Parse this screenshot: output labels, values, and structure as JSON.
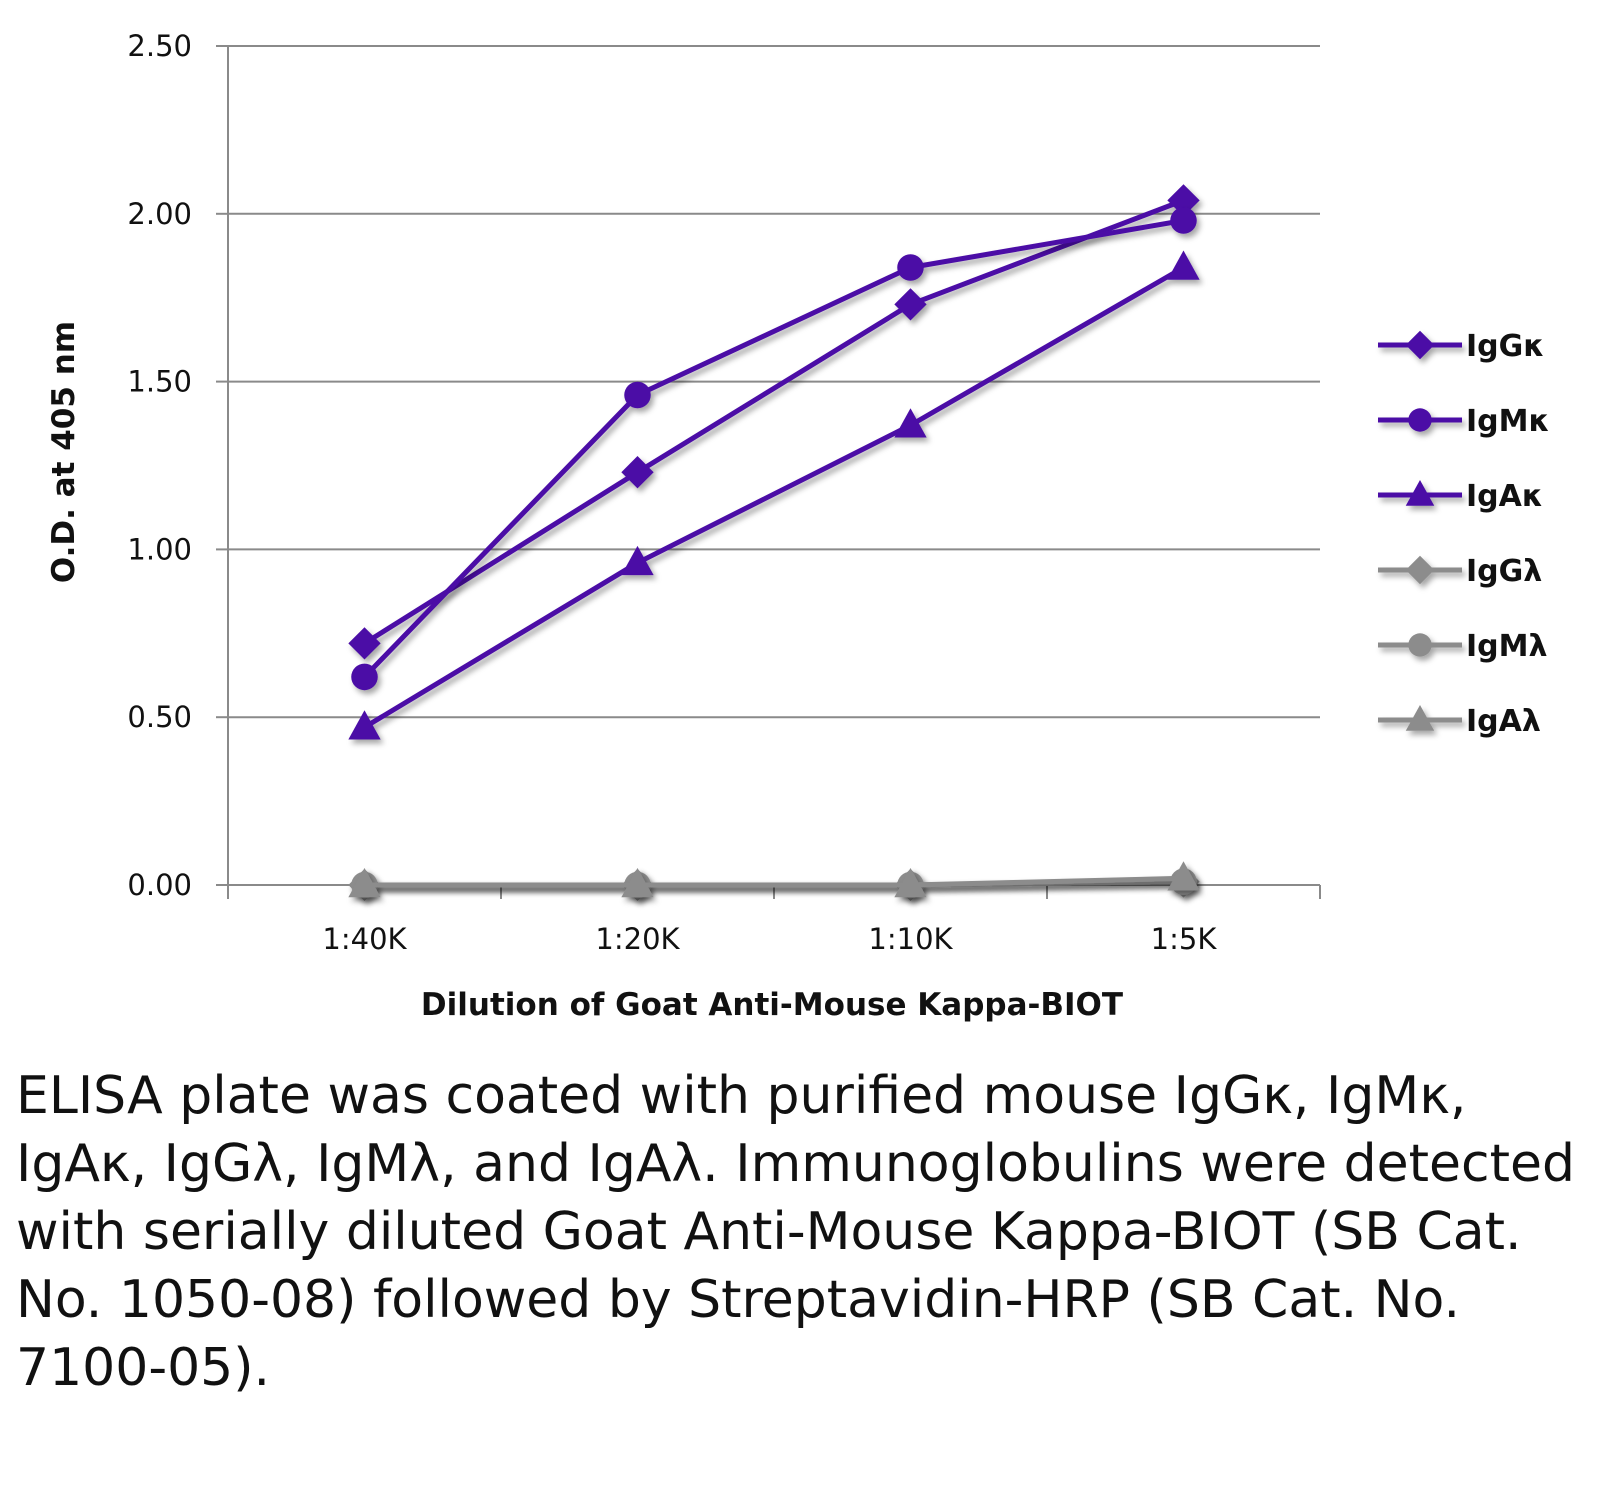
{
  "chart_data": {
    "type": "line",
    "title": "",
    "xlabel": "Dilution of Goat Anti-Mouse Kappa-BIOT",
    "ylabel": "O.D. at 405 nm",
    "categories": [
      "1:40K",
      "1:20K",
      "1:10K",
      "1:5K"
    ],
    "ylim": [
      0,
      2.5
    ],
    "yticks": [
      "0.00",
      "0.50",
      "1.00",
      "1.50",
      "2.00",
      "2.50"
    ],
    "ytick_values": [
      0,
      0.5,
      1.0,
      1.5,
      2.0,
      2.5
    ],
    "grid": true,
    "legend_position": "right",
    "series": [
      {
        "name": "IgGκ",
        "marker": "diamond",
        "color": "#4b0fa6",
        "values": [
          0.72,
          1.23,
          1.73,
          2.04
        ]
      },
      {
        "name": "IgMκ",
        "marker": "circle",
        "color": "#4b0fa6",
        "values": [
          0.62,
          1.46,
          1.84,
          1.98
        ]
      },
      {
        "name": "IgAκ",
        "marker": "triangle",
        "color": "#4b0fa6",
        "values": [
          0.47,
          0.96,
          1.37,
          1.84
        ]
      },
      {
        "name": "IgGλ",
        "marker": "diamond",
        "color": "#8c8c8c",
        "values": [
          0.0,
          0.0,
          0.0,
          0.01
        ]
      },
      {
        "name": "IgMλ",
        "marker": "circle",
        "color": "#8c8c8c",
        "values": [
          0.0,
          0.0,
          0.0,
          0.01
        ]
      },
      {
        "name": "IgAλ",
        "marker": "triangle",
        "color": "#8c8c8c",
        "values": [
          0.0,
          0.0,
          0.0,
          0.02
        ]
      }
    ]
  },
  "caption": "ELISA plate was coated with purified mouse IgGκ, IgMκ, IgAκ, IgGλ, IgMλ, and IgAλ. Immunoglobulins were detected with serially diluted Goat Anti-Mouse Kappa-BIOT (SB Cat. No. 1050-08) followed by Streptavidin-HRP (SB Cat. No. 7100-05)."
}
